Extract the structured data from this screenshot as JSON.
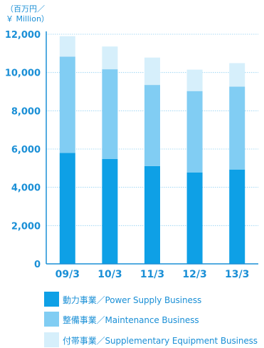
{
  "unit_label_line1": "（百万円／",
  "unit_label_line2": "￥ Million）",
  "chart_data": {
    "type": "bar",
    "stacked": true,
    "categories": [
      "09/3",
      "10/3",
      "11/3",
      "12/3",
      "13/3"
    ],
    "series": [
      {
        "name": "動力事業／Power Supply Business",
        "color": "#0ea0e6",
        "values": [
          5800,
          5480,
          5110,
          4780,
          4930
        ]
      },
      {
        "name": "整備事業／Maintenance Business",
        "color": "#81cdf3",
        "values": [
          5030,
          4690,
          4240,
          4250,
          4330
        ]
      },
      {
        "name": "付帯事業／Supplementary Equipment Business",
        "color": "#d6effb",
        "values": [
          1070,
          1190,
          1430,
          1120,
          1230
        ]
      }
    ],
    "ylim": [
      0,
      12000
    ],
    "yticks": [
      "0",
      "2,000",
      "4,000",
      "6,000",
      "8,000",
      "10,000",
      "12,000"
    ],
    "ytick_values": [
      0,
      2000,
      4000,
      6000,
      8000,
      10000,
      12000
    ],
    "grid": true,
    "legend_position": "bottom"
  }
}
